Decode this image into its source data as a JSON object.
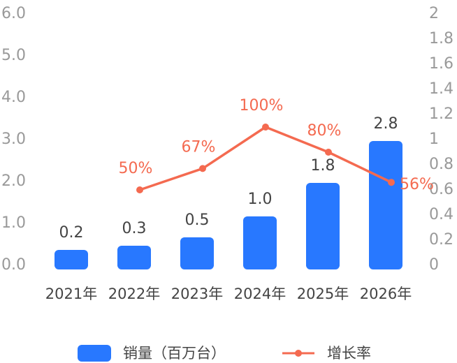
{
  "chart_data": {
    "type": "bar",
    "categories": [
      "2021年",
      "2022年",
      "2023年",
      "2024年",
      "2025年",
      "2026年"
    ],
    "series": [
      {
        "name": "销量（百万台）",
        "type": "bar",
        "axis": "left",
        "values": [
          0.2,
          0.3,
          0.5,
          1.0,
          1.8,
          2.8
        ],
        "labels": [
          "0.2",
          "0.3",
          "0.5",
          "1.0",
          "1.8",
          "2.8"
        ],
        "color": "#2878FF"
      },
      {
        "name": "增长率",
        "type": "line",
        "axis": "right",
        "values": [
          null,
          0.5,
          0.67,
          1.0,
          0.8,
          0.56
        ],
        "labels": [
          null,
          "50%",
          "67%",
          "100%",
          "80%",
          "56%"
        ],
        "color": "#F46A50"
      }
    ],
    "y_left": {
      "ylim": [
        0,
        6
      ],
      "ticks": [
        "0.0",
        "1.0",
        "2.0",
        "3.0",
        "4.0",
        "5.0",
        "6.0"
      ]
    },
    "y_right": {
      "ylim": [
        0,
        2
      ],
      "ticks": [
        "0",
        "0.2",
        "0.4",
        "0.6",
        "0.8",
        "1",
        "1.2",
        "1.4",
        "1.6",
        "1.8",
        "2"
      ]
    },
    "grid": false,
    "legend": "bottom"
  }
}
